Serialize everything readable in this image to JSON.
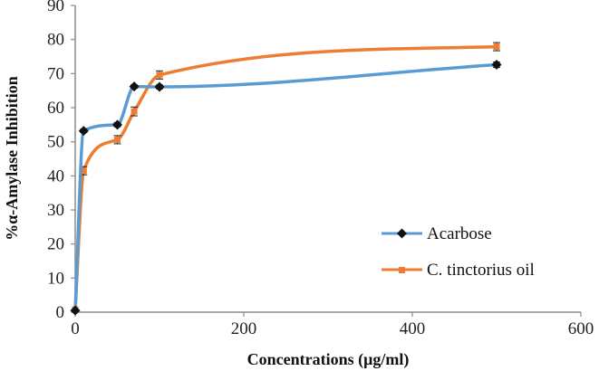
{
  "chart_data": {
    "type": "line",
    "xlabel": "Concentrations (μg/ml)",
    "ylabel": "%α-Amylase Inhibition",
    "xlim": [
      0,
      600
    ],
    "ylim": [
      0,
      90
    ],
    "x_ticks": [
      "0",
      "200",
      "400",
      "600"
    ],
    "y_ticks": [
      "0",
      "10",
      "20",
      "30",
      "40",
      "50",
      "60",
      "70",
      "80",
      "90"
    ],
    "grid": false,
    "legend_position": "right",
    "series": [
      {
        "name": "Acarbose",
        "color": "#5b9bd5",
        "marker": "diamond",
        "points": [
          {
            "x": 0,
            "y": 0.5,
            "err": 0
          },
          {
            "x": 10,
            "y": 53.2,
            "err": 0.5
          },
          {
            "x": 50,
            "y": 55.0,
            "err": 0.6
          },
          {
            "x": 70,
            "y": 66.2,
            "err": 0.5
          },
          {
            "x": 100,
            "y": 66.1,
            "err": 0.6
          },
          {
            "x": 500,
            "y": 72.6,
            "err": 0.8
          }
        ]
      },
      {
        "name": "C. tinctorius oil",
        "color": "#ed7d31",
        "marker": "square",
        "points": [
          {
            "x": 0,
            "y": 0.8,
            "err": 0
          },
          {
            "x": 10,
            "y": 41.5,
            "err": 1.2
          },
          {
            "x": 50,
            "y": 50.6,
            "err": 1.2
          },
          {
            "x": 70,
            "y": 58.9,
            "err": 1.3
          },
          {
            "x": 100,
            "y": 69.6,
            "err": 1.2
          },
          {
            "x": 500,
            "y": 77.9,
            "err": 1.2
          }
        ]
      }
    ]
  }
}
